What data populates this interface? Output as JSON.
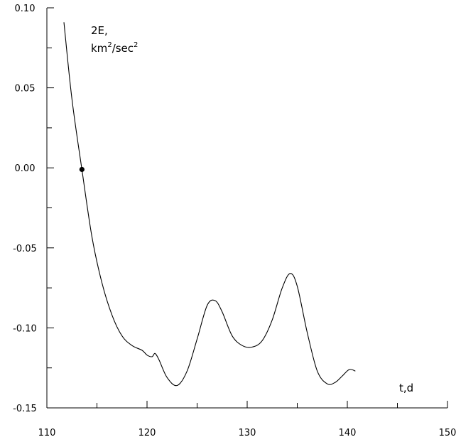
{
  "chart_data": {
    "type": "line",
    "xlabel": "t,d",
    "ylabel_parts": [
      "2E,",
      "km",
      "2",
      "/sec",
      "2"
    ],
    "xlim": [
      110,
      150
    ],
    "ylim": [
      -0.15,
      0.1
    ],
    "x_ticks": [
      "110",
      "120",
      "130",
      "140",
      "150"
    ],
    "y_ticks": [
      "0.10",
      "0.05",
      "0.00",
      "-0.05",
      "-0.10",
      "-0.15"
    ],
    "x_tick_values": [
      110,
      120,
      130,
      140,
      150
    ],
    "y_tick_values": [
      0.1,
      0.05,
      0.0,
      -0.05,
      -0.1,
      -0.15
    ],
    "grid": false,
    "series": [
      {
        "x": [
          111.7,
          112.5,
          113.5,
          114.5,
          115.5,
          116.5,
          117.5,
          118.5,
          119.5,
          120.0,
          120.5,
          120.8,
          121.2,
          122.0,
          123.0,
          124.0,
          125.0,
          126.0,
          126.8,
          127.5,
          128.5,
          129.5,
          130.5,
          131.5,
          132.5,
          133.5,
          134.3,
          135.0,
          136.0,
          137.0,
          138.0,
          138.8,
          139.5,
          140.2,
          140.8
        ],
        "y": [
          0.091,
          0.043,
          -0.001,
          -0.043,
          -0.072,
          -0.092,
          -0.105,
          -0.111,
          -0.114,
          -0.117,
          -0.118,
          -0.116,
          -0.12,
          -0.131,
          -0.136,
          -0.127,
          -0.107,
          -0.086,
          -0.083,
          -0.09,
          -0.105,
          -0.111,
          -0.112,
          -0.108,
          -0.095,
          -0.075,
          -0.066,
          -0.074,
          -0.103,
          -0.127,
          -0.135,
          -0.134,
          -0.13,
          -0.126,
          -0.127
        ]
      }
    ],
    "marker_point": {
      "x": 113.5,
      "y": -0.001
    }
  }
}
